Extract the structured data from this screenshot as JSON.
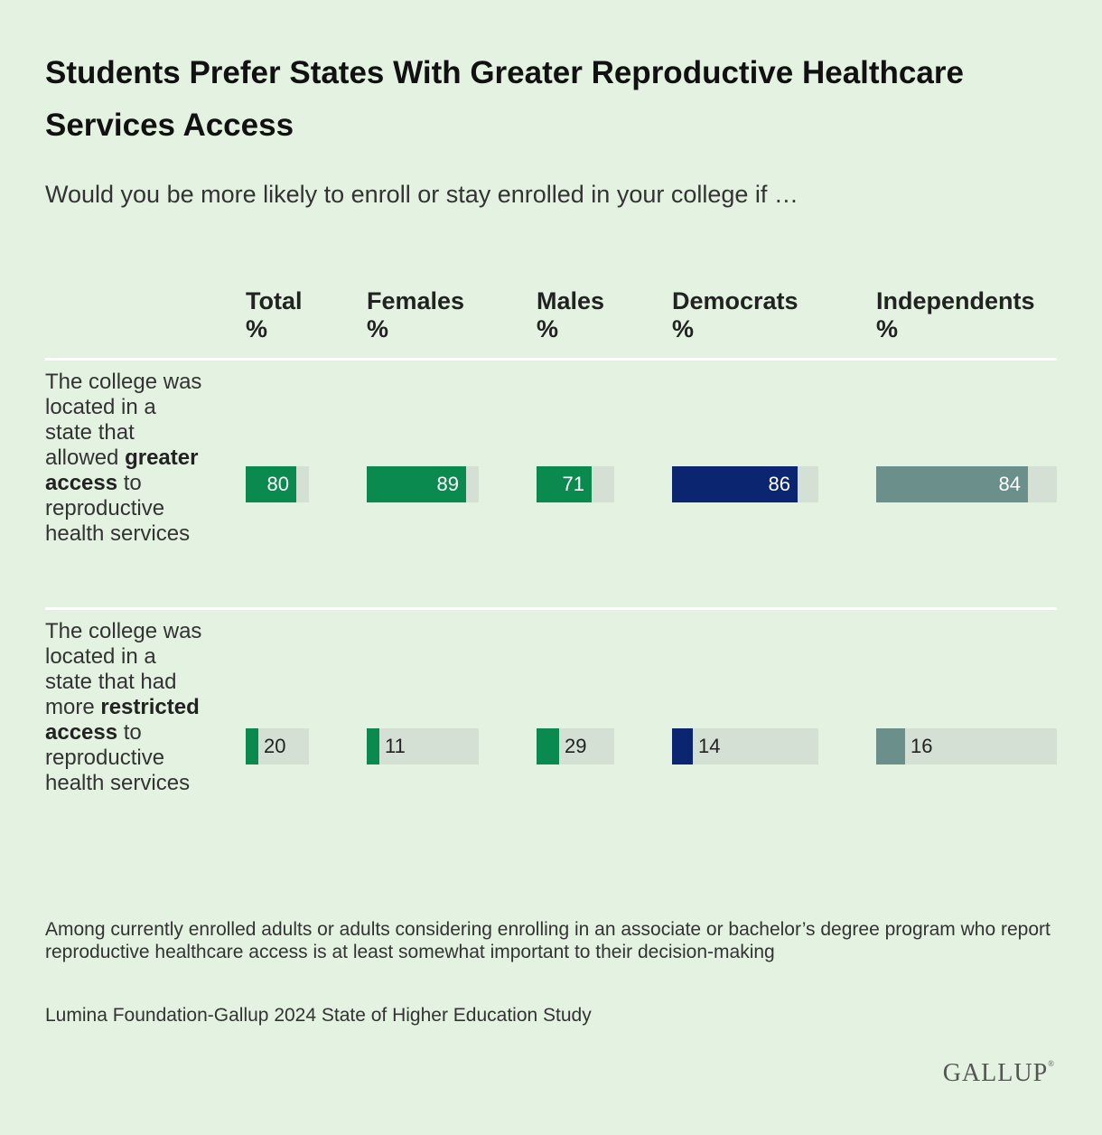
{
  "chart_data": {
    "type": "bar",
    "title": "Students Prefer States With Greater Reproductive Healthcare Services Access",
    "subtitle": "Would you be more likely to enroll or stay enrolled in your college if …",
    "columns": [
      "Total",
      "Females",
      "Males",
      "Democrats",
      "Independents"
    ],
    "column_unit": "%",
    "ylim": [
      0,
      100
    ],
    "rows": [
      {
        "label_pre": "The college was located in a state that allowed ",
        "label_bold": "greater access",
        "label_post": " to reproductive health services",
        "values": [
          80,
          89,
          71,
          86,
          84
        ]
      },
      {
        "label_pre": "The college was located in a state that had more ",
        "label_bold": "restricted access",
        "label_post": " to reproductive health services",
        "values": [
          20,
          11,
          29,
          14,
          16
        ]
      }
    ],
    "colors": [
      "#0a8a4e",
      "#0a8a4e",
      "#0a8a4e",
      "#0c2571",
      "#6b8f8a"
    ],
    "track_color": "#d3e0d3",
    "value_color_inside": "#ffffff",
    "value_color_outside": "#222222"
  },
  "footer": {
    "note": "Among currently enrolled adults or adults considering enrolling in an associate or bachelor’s degree program who report reproductive healthcare access is at least somewhat important to their decision-making",
    "source": "Lumina Foundation-Gallup 2024 State of Higher Education Study"
  },
  "logo": {
    "text": "GALLUP",
    "mark": "®"
  }
}
